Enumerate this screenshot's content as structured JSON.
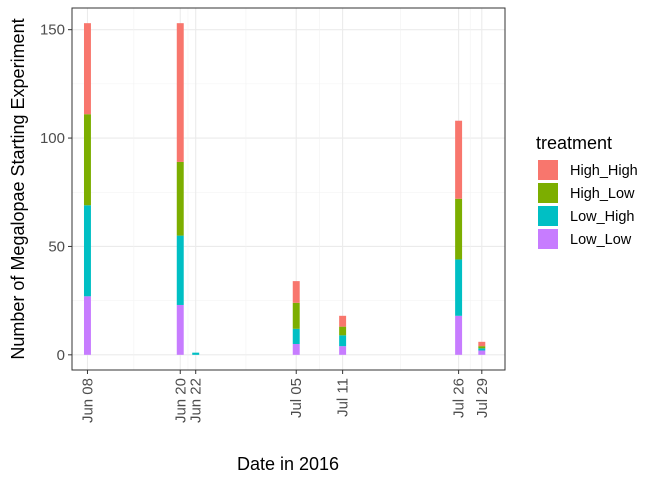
{
  "chart_data": {
    "type": "bar",
    "stacked": true,
    "xlabel": "Date in 2016",
    "ylabel": "Number of Megalopae Starting Experiment",
    "ylim": [
      -7,
      160
    ],
    "y_ticks": [
      0,
      50,
      100,
      150
    ],
    "grid": true,
    "legend_title": "treatment",
    "legend_position": "right",
    "x_domain": [
      "2016-06-06",
      "2016-08-01"
    ],
    "categories": [
      "Jun 08",
      "Jun 20",
      "Jun 22",
      "Jul 05",
      "Jul 11",
      "Jul 26",
      "Jul 29"
    ],
    "dates": [
      "2016-06-08",
      "2016-06-20",
      "2016-06-22",
      "2016-07-05",
      "2016-07-11",
      "2016-07-26",
      "2016-07-29"
    ],
    "series": [
      {
        "name": "Low_Low",
        "color": "#C77CFF",
        "values": [
          27,
          23,
          0,
          5,
          4,
          18,
          2
        ]
      },
      {
        "name": "Low_High",
        "color": "#00BFC4",
        "values": [
          42,
          32,
          1,
          7,
          5,
          26,
          1
        ]
      },
      {
        "name": "High_Low",
        "color": "#7CAE00",
        "values": [
          42,
          34,
          0,
          12,
          4,
          28,
          1
        ]
      },
      {
        "name": "High_High",
        "color": "#F8766D",
        "values": [
          42,
          64,
          0,
          10,
          5,
          36,
          2
        ]
      }
    ],
    "legend_order": [
      "High_High",
      "High_Low",
      "Low_High",
      "Low_Low"
    ]
  }
}
